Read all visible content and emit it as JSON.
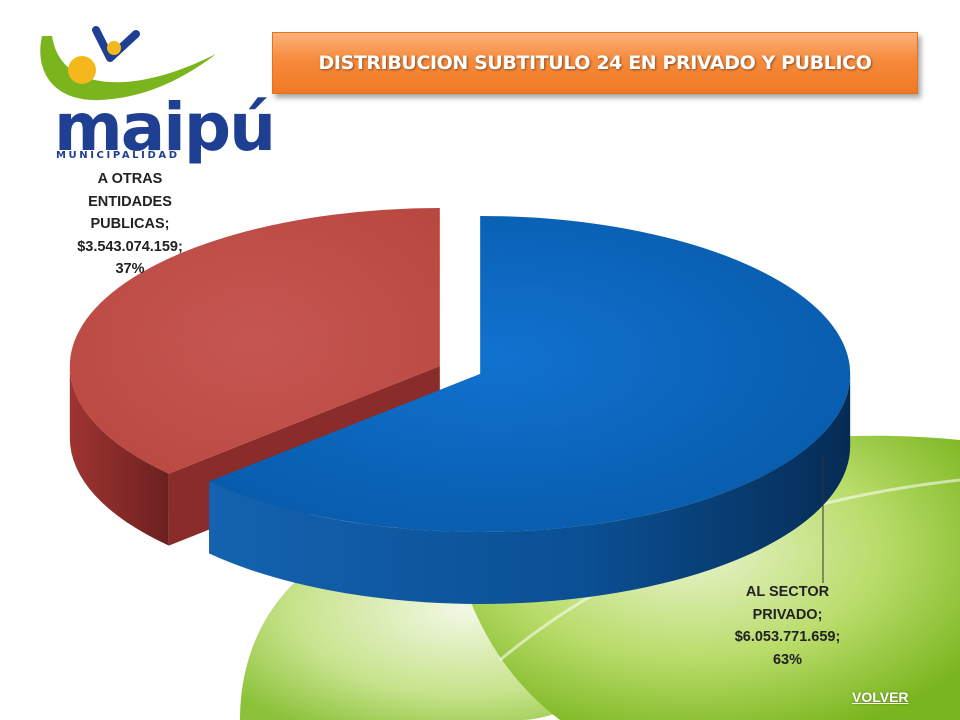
{
  "slide": {
    "title": "DISTRIBUCION SUBTITULO 24 EN PRIVADO Y PUBLICO",
    "volver_label": "VOLVER"
  },
  "logo": {
    "word": "maipú",
    "subtitle": "MUNICIPALIDAD"
  },
  "colors": {
    "publicas": "#c0504d",
    "privado": "#0a64b8",
    "title_bar": "#f68a3c",
    "logo_blue": "#1f3f93",
    "logo_green": "#7ab51d",
    "logo_yellow": "#f5b81c"
  },
  "chart_data": {
    "type": "pie",
    "style": "3d-exploded",
    "title": "",
    "slices": [
      {
        "category": "A OTRAS ENTIDADES PUBLICAS",
        "value": 3543074159,
        "value_label": "$3.543.074.159",
        "percent": 37,
        "percent_label": "37%",
        "label_lines": [
          "A OTRAS",
          "ENTIDADES",
          "PUBLICAS;",
          "$3.543.074.159;",
          "37%"
        ],
        "color": "#c0504d"
      },
      {
        "category": "AL SECTOR PRIVADO",
        "value": 6053771659,
        "value_label": "$6.053.771.659",
        "percent": 63,
        "percent_label": "63%",
        "label_lines": [
          "AL SECTOR",
          "PRIVADO;",
          "$6.053.771.659;",
          "63%"
        ],
        "color": "#0a64b8"
      }
    ],
    "legend": "none"
  }
}
